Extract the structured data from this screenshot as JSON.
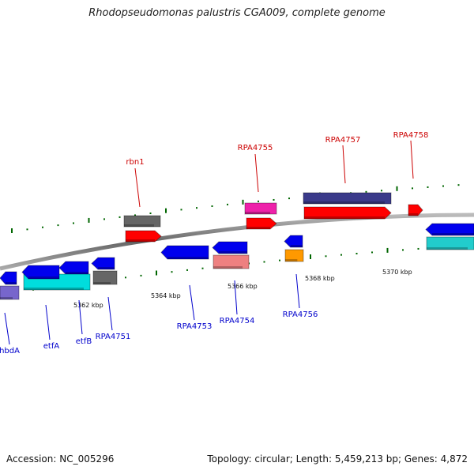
{
  "title": "Rhodopseudomonas palustris CGA009, complete genome",
  "footer": {
    "accession": "Accession: NC_005296",
    "summary": "Topology: circular; Length: 5,459,213 bp; Genes: 4,872"
  },
  "colors": {
    "forward_label": "#cc0000",
    "reverse_label": "#0000cc",
    "backbone": "#888888",
    "dots": "#006600",
    "red": "#ff0000",
    "blue": "#0000ee",
    "gray": "#666666",
    "magenta": "#ee22aa",
    "navy": "#3a3a8a",
    "cyan": "#00dddd",
    "pink": "#ee8080",
    "orange": "#ff9900",
    "lavender": "#7766cc",
    "teal": "#22cccc"
  },
  "ticks": [
    {
      "label": "5362 kbp"
    },
    {
      "label": "5364 kbp"
    },
    {
      "label": "5366 kbp"
    },
    {
      "label": "5368 kbp"
    },
    {
      "label": "5370 kbp"
    }
  ],
  "labels_top": [
    "rbn1",
    "RPA4755",
    "RPA4757",
    "RPA4758"
  ],
  "labels_bottom": [
    "hbdA",
    "etfA",
    "etfB",
    "RPA4751",
    "RPA4753",
    "RPA4754",
    "RPA4756"
  ]
}
